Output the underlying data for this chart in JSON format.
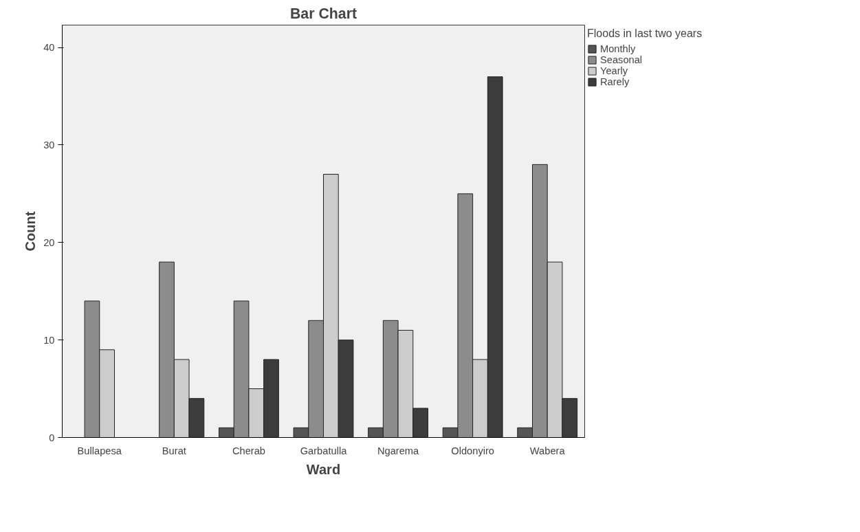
{
  "chart_data": {
    "type": "bar",
    "title": "Bar Chart",
    "xlabel": "Ward",
    "ylabel": "Count",
    "legend_title": "Floods in last two years",
    "categories": [
      "Bullapesa",
      "Burat",
      "Cherab",
      "Garbatulla",
      "Ngarema",
      "Oldonyiro",
      "Wabera"
    ],
    "series": [
      {
        "name": "Monthly",
        "color": "#555555",
        "values": [
          null,
          null,
          1,
          1,
          1,
          1,
          1
        ]
      },
      {
        "name": "Seasonal",
        "color": "#8c8c8c",
        "values": [
          14,
          18,
          14,
          12,
          12,
          25,
          28
        ]
      },
      {
        "name": "Yearly",
        "color": "#cccccc",
        "values": [
          9,
          8,
          5,
          27,
          11,
          8,
          18
        ]
      },
      {
        "name": "Rarely",
        "color": "#3c3c3c",
        "values": [
          null,
          4,
          8,
          10,
          3,
          37,
          4
        ]
      }
    ],
    "ylim": [
      0,
      42.3
    ],
    "yticks": [
      0,
      10,
      20,
      30,
      40
    ],
    "grid": false,
    "legend": "right"
  }
}
